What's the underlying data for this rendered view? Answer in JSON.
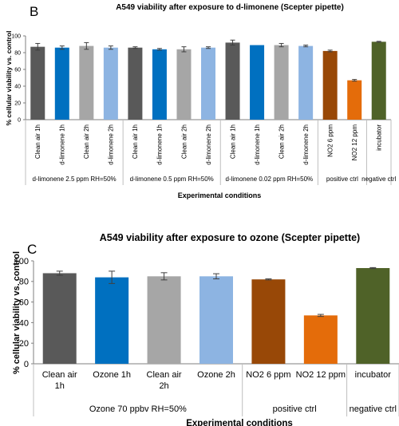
{
  "chart_data": [
    {
      "type": "bar",
      "panel_label": "B",
      "title": "A549 viability after exposure to d-limonene (Scepter pipette)",
      "ylabel": "% cellular viability vs. control",
      "xlabel": "Experimental conditions",
      "ylim": [
        0,
        100
      ],
      "yticks": [
        0,
        20,
        40,
        60,
        80,
        100
      ],
      "grid": false,
      "legend": "none",
      "categories": [
        "Clean air 1h",
        "d-limonene 1h",
        "Clean air 2h",
        "d-limonene 2h",
        "Clean air 1h",
        "d-limonene 1h",
        "Clean air 2h",
        "d-limonene 2h",
        "Clean air 1h",
        "d-limonene 1h",
        "Clean air 2h",
        "d-limonene 2h",
        "NO2 6 ppm",
        "NO2 12 ppm",
        "incubator"
      ],
      "values": [
        87,
        86,
        88,
        86,
        86,
        84,
        84,
        86,
        92,
        89,
        89,
        88,
        82,
        47,
        93
      ],
      "errors": [
        4,
        2,
        4,
        2,
        1,
        1,
        3,
        1,
        3,
        0,
        2,
        1,
        1,
        1,
        0.5
      ],
      "colors": [
        "#595959",
        "#0070c0",
        "#a6a6a6",
        "#8db4e2",
        "#595959",
        "#0070c0",
        "#a6a6a6",
        "#8db4e2",
        "#595959",
        "#0070c0",
        "#a6a6a6",
        "#8db4e2",
        "#984807",
        "#e46c0a",
        "#4f6228"
      ],
      "groups": [
        {
          "label": "d-limonene 2.5 ppm RH=50%",
          "start": 0,
          "end": 3
        },
        {
          "label": "d-limonene 0.5 ppm RH=50%",
          "start": 4,
          "end": 7
        },
        {
          "label": "d-limonene 0.02 ppm RH=50%",
          "start": 8,
          "end": 11
        },
        {
          "label": "positive ctrl",
          "start": 12,
          "end": 13
        },
        {
          "label": "negative ctrl",
          "start": 14,
          "end": 14
        }
      ]
    },
    {
      "type": "bar",
      "panel_label": "C",
      "title": "A549 viability after exposure to ozone (Scepter pipette)",
      "ylabel": "% cellular viability vs. control",
      "xlabel": "Experimental conditions",
      "ylim": [
        0,
        100
      ],
      "yticks": [
        0,
        20,
        40,
        60,
        80,
        100
      ],
      "grid": false,
      "legend": "none",
      "categories": [
        "Clean air 1h",
        "Ozone 1h",
        "Clean air 2h",
        "Ozone 2h",
        "NO2 6 ppm",
        "NO2 12 ppm",
        "incubator"
      ],
      "values": [
        88,
        84,
        85,
        85,
        82,
        47,
        93
      ],
      "errors": [
        2,
        6,
        3.5,
        2.5,
        0.5,
        1,
        0.5
      ],
      "colors": [
        "#595959",
        "#0070c0",
        "#a6a6a6",
        "#8db4e2",
        "#984807",
        "#e46c0a",
        "#4f6228"
      ],
      "groups": [
        {
          "label": "Ozone 70 ppbv RH=50%",
          "start": 0,
          "end": 3
        },
        {
          "label": "positive ctrl",
          "start": 4,
          "end": 5
        },
        {
          "label": "negative ctrl",
          "start": 6,
          "end": 6
        }
      ]
    }
  ]
}
